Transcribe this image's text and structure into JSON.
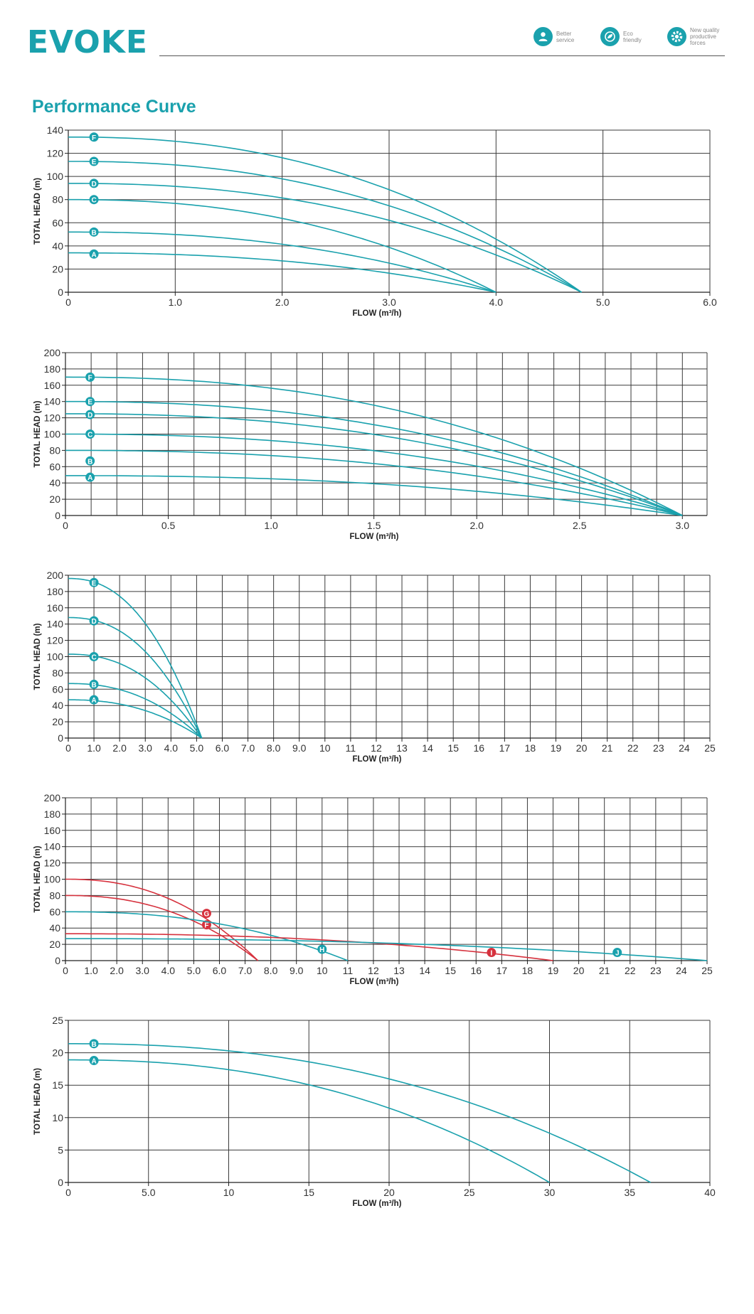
{
  "header": {
    "logo": "EVOKE",
    "badges": [
      {
        "icon": "person-service-icon",
        "text": [
          "Better",
          "service"
        ]
      },
      {
        "icon": "eco-leaf-icon",
        "text": [
          "Eco",
          "friendly"
        ]
      },
      {
        "icon": "gear-icon",
        "text": [
          "New quality",
          "productive",
          "forces"
        ]
      }
    ]
  },
  "page_title": "Performance Curve",
  "colors": {
    "teal": "#1aa1ad",
    "red": "#d6323e",
    "brand": "#1aa1ad"
  },
  "chart_data": [
    {
      "type": "line",
      "xlabel": "FLOW (m³/h)",
      "ylabel": "TOTAL  HEAD  (m)",
      "xlim": [
        0,
        6
      ],
      "ylim": [
        0,
        140
      ],
      "xticks": [
        0,
        1,
        2,
        3,
        4,
        5,
        6
      ],
      "xtick_labels": [
        "0",
        "1.0",
        "2.0",
        "3.0",
        "4.0",
        "5.0",
        "6.0"
      ],
      "yticks": [
        0,
        20,
        40,
        60,
        80,
        100,
        120,
        140
      ],
      "x_gridlines": [
        0,
        1,
        2,
        3,
        4,
        5,
        6
      ],
      "series": [
        {
          "name": "A",
          "color": "teal",
          "shutoff": 34,
          "max_flow": 4.0,
          "label_at": [
            0.24,
            33
          ]
        },
        {
          "name": "B",
          "color": "teal",
          "shutoff": 52,
          "max_flow": 4.0,
          "label_at": [
            0.24,
            52
          ]
        },
        {
          "name": "C",
          "color": "teal",
          "shutoff": 80,
          "max_flow": 4.0,
          "label_at": [
            0.24,
            80
          ]
        },
        {
          "name": "D",
          "color": "teal",
          "shutoff": 94,
          "max_flow": 4.8,
          "label_at": [
            0.24,
            94
          ]
        },
        {
          "name": "E",
          "color": "teal",
          "shutoff": 113,
          "max_flow": 4.8,
          "label_at": [
            0.24,
            113
          ]
        },
        {
          "name": "F",
          "color": "teal",
          "shutoff": 134,
          "max_flow": 4.8,
          "label_at": [
            0.24,
            134
          ]
        }
      ]
    },
    {
      "type": "line",
      "xlabel": "FLOW (m³/h)",
      "ylabel": "TOTAL  HEAD  (m)",
      "xlim": [
        0,
        3.12
      ],
      "ylim": [
        0,
        200
      ],
      "xticks": [
        0,
        0.5,
        1.0,
        1.5,
        2.0,
        2.5,
        3.0
      ],
      "xtick_labels": [
        "0",
        "0.5",
        "1.0",
        "1.5",
        "2.0",
        "2.5",
        "3.0"
      ],
      "yticks": [
        0,
        20,
        40,
        60,
        80,
        100,
        120,
        140,
        160,
        180,
        200
      ],
      "x_gridlines": [
        0,
        0.125,
        0.25,
        0.375,
        0.5,
        0.625,
        0.75,
        0.875,
        1.0,
        1.125,
        1.25,
        1.375,
        1.5,
        1.625,
        1.75,
        1.875,
        2.0,
        2.125,
        2.25,
        2.375,
        2.5,
        2.625,
        2.75,
        2.875,
        3.0,
        3.12
      ],
      "series": [
        {
          "name": "A",
          "color": "teal",
          "shutoff": 49,
          "max_flow": 3.0,
          "label_at": [
            0.12,
            47
          ]
        },
        {
          "name": "B",
          "color": "teal",
          "shutoff": 80,
          "max_flow": 3.0,
          "label_at": [
            0.12,
            67
          ]
        },
        {
          "name": "C",
          "color": "teal",
          "shutoff": 100,
          "max_flow": 3.0,
          "label_at": [
            0.12,
            100
          ]
        },
        {
          "name": "D",
          "color": "teal",
          "shutoff": 125,
          "max_flow": 3.0,
          "label_at": [
            0.12,
            124
          ]
        },
        {
          "name": "E",
          "color": "teal",
          "shutoff": 140,
          "max_flow": 3.0,
          "label_at": [
            0.12,
            140
          ]
        },
        {
          "name": "F",
          "color": "teal",
          "shutoff": 170,
          "max_flow": 3.0,
          "label_at": [
            0.12,
            170
          ]
        }
      ]
    },
    {
      "type": "line",
      "xlabel": "FLOW (m³/h)",
      "ylabel": "TOTAL  HEAD  (m)",
      "xlim": [
        0,
        25
      ],
      "ylim": [
        0,
        200
      ],
      "xticks": [
        0,
        1,
        2,
        3,
        4,
        5,
        6,
        7,
        8,
        9,
        10,
        11,
        12,
        13,
        14,
        15,
        16,
        17,
        18,
        19,
        20,
        21,
        22,
        23,
        24,
        25
      ],
      "xtick_labels": [
        "0",
        "1.0",
        "2.0",
        "3.0",
        "4.0",
        "5.0",
        "6.0",
        "7.0",
        "8.0",
        "9.0",
        "10",
        "11",
        "12",
        "13",
        "14",
        "15",
        "16",
        "17",
        "18",
        "19",
        "20",
        "21",
        "22",
        "23",
        "24",
        "25"
      ],
      "yticks": [
        0,
        20,
        40,
        60,
        80,
        100,
        120,
        140,
        160,
        180,
        200
      ],
      "x_gridlines": [
        0,
        1,
        2,
        3,
        4,
        5,
        6,
        7,
        8,
        9,
        10,
        11,
        12,
        13,
        14,
        15,
        16,
        17,
        18,
        19,
        20,
        21,
        22,
        23,
        24,
        25
      ],
      "series": [
        {
          "name": "A",
          "color": "teal",
          "shutoff": 47,
          "max_flow": 5.2,
          "label_at": [
            1.0,
            47
          ]
        },
        {
          "name": "B",
          "color": "teal",
          "shutoff": 67,
          "max_flow": 5.2,
          "label_at": [
            1.0,
            66
          ]
        },
        {
          "name": "C",
          "color": "teal",
          "shutoff": 103,
          "max_flow": 5.2,
          "label_at": [
            1.0,
            100
          ]
        },
        {
          "name": "D",
          "color": "teal",
          "shutoff": 148,
          "max_flow": 5.2,
          "label_at": [
            1.0,
            144
          ]
        },
        {
          "name": "E",
          "color": "teal",
          "shutoff": 196,
          "max_flow": 5.2,
          "label_at": [
            1.0,
            191
          ]
        }
      ]
    },
    {
      "type": "line",
      "xlabel": "FLOW (m³/h)",
      "ylabel": "TOTAL  HEAD  (m)",
      "xlim": [
        0,
        25
      ],
      "ylim": [
        0,
        200
      ],
      "xticks": [
        0,
        1,
        2,
        3,
        4,
        5,
        6,
        7,
        8,
        9,
        10,
        11,
        12,
        13,
        14,
        15,
        16,
        17,
        18,
        19,
        20,
        21,
        22,
        23,
        24,
        25
      ],
      "xtick_labels": [
        "0",
        "1.0",
        "2.0",
        "3.0",
        "4.0",
        "5.0",
        "6.0",
        "7.0",
        "8.0",
        "9.0",
        "10",
        "11",
        "12",
        "13",
        "14",
        "15",
        "16",
        "17",
        "18",
        "19",
        "20",
        "21",
        "22",
        "23",
        "24",
        "25"
      ],
      "yticks": [
        0,
        20,
        40,
        60,
        80,
        100,
        120,
        140,
        160,
        180,
        200
      ],
      "x_gridlines": [
        0,
        1,
        2,
        3,
        4,
        5,
        6,
        7,
        8,
        9,
        10,
        11,
        12,
        13,
        14,
        15,
        16,
        17,
        18,
        19,
        20,
        21,
        22,
        23,
        24,
        25
      ],
      "series": [
        {
          "name": "F",
          "color": "red",
          "shutoff": 80,
          "max_flow": 7.5,
          "label_at": [
            5.5,
            44
          ]
        },
        {
          "name": "G",
          "color": "red",
          "shutoff": 100,
          "max_flow": 7.5,
          "label_at": [
            5.5,
            58
          ]
        },
        {
          "name": "H",
          "color": "teal",
          "shutoff": 60,
          "max_flow": 11.0,
          "label_at": [
            10.0,
            14
          ]
        },
        {
          "name": "I",
          "color": "red",
          "shutoff": 33,
          "max_flow": 19.0,
          "label_at": [
            16.6,
            10
          ]
        },
        {
          "name": "J",
          "color": "teal",
          "shutoff": 27,
          "max_flow": 25.0,
          "label_at": [
            21.5,
            10
          ]
        }
      ]
    },
    {
      "type": "line",
      "xlabel": "FLOW (m³/h)",
      "ylabel": "TOTAL  HEAD  (m)",
      "xlim": [
        0,
        40
      ],
      "ylim": [
        0,
        25
      ],
      "xticks": [
        0,
        5,
        10,
        15,
        20,
        25,
        30,
        35,
        40
      ],
      "xtick_labels": [
        "0",
        "5.0",
        "10",
        "15",
        "20",
        "25",
        "30",
        "35",
        "40"
      ],
      "yticks": [
        0,
        5,
        10,
        15,
        20,
        25
      ],
      "x_gridlines": [
        0,
        5,
        10,
        15,
        20,
        25,
        30,
        35,
        40
      ],
      "series": [
        {
          "name": "A",
          "color": "teal",
          "shutoff": 18.9,
          "max_flow": 30.0,
          "label_at": [
            1.6,
            18.8
          ]
        },
        {
          "name": "B",
          "color": "teal",
          "shutoff": 21.4,
          "max_flow": 36.3,
          "label_at": [
            1.6,
            21.4
          ]
        }
      ]
    }
  ]
}
